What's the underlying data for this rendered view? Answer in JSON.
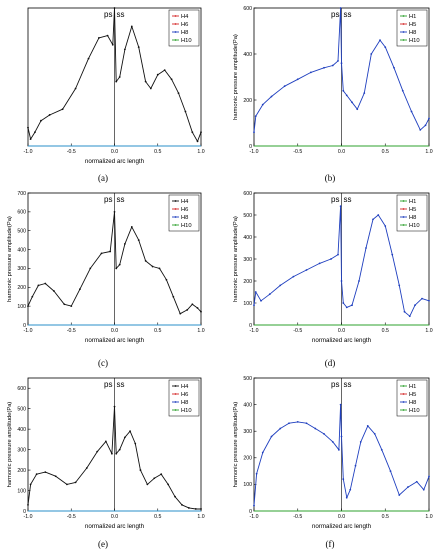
{
  "chart_data": [
    {
      "id": "a",
      "caption": "(a)",
      "type": "line",
      "xlabel": "normalized arc length",
      "ylabel": "",
      "xlim": [
        -1.0,
        1.0
      ],
      "ylim": [
        0,
        600
      ],
      "xticks": [
        -1.0,
        -0.5,
        0.0,
        0.5,
        1.0
      ],
      "xtick_labels": [
        "-1.0",
        "-0.5",
        "0.0",
        "0.5",
        "1.0"
      ],
      "yticks": [],
      "ytick_labels": [],
      "annotations": [
        "ps",
        "ss"
      ],
      "legend": [
        "H4",
        "H6",
        "H8",
        "H10"
      ],
      "legend_colors": [
        "#d62728",
        "#d62728",
        "#1f3fbf",
        "#2ca02c"
      ],
      "legend_position": "top-right",
      "series": [
        {
          "name": "H4",
          "color": "#111111",
          "x": [
            -1.0,
            -0.97,
            -0.92,
            -0.85,
            -0.75,
            -0.6,
            -0.45,
            -0.3,
            -0.18,
            -0.08,
            -0.02,
            0.0,
            0.02,
            0.06,
            0.12,
            0.2,
            0.28,
            0.36,
            0.42,
            0.5,
            0.58,
            0.66,
            0.74,
            0.82,
            0.9,
            0.96,
            1.0
          ],
          "y": [
            80,
            30,
            60,
            110,
            135,
            160,
            250,
            380,
            470,
            480,
            440,
            600,
            280,
            300,
            420,
            520,
            430,
            280,
            250,
            310,
            330,
            290,
            230,
            150,
            60,
            20,
            60
          ]
        },
        {
          "name": "H10",
          "color": "#2a8fc8",
          "x": [
            -1.0,
            1.0
          ],
          "y": [
            0,
            0
          ]
        }
      ]
    },
    {
      "id": "b",
      "caption": "(b)",
      "type": "line",
      "xlabel": "",
      "ylabel": "harmonic pressure amplitude(Pa)",
      "xlim": [
        -1.0,
        1.0
      ],
      "ylim": [
        0,
        600
      ],
      "xticks": [
        -1.0,
        -0.5,
        0.0,
        0.5,
        1.0
      ],
      "xtick_labels": [
        "-1.0",
        "-0.5",
        "0.0",
        "0.5",
        "1.0"
      ],
      "yticks": [
        0,
        200,
        400,
        600
      ],
      "ytick_labels": [
        "0",
        "200",
        "400",
        "600"
      ],
      "annotations": [
        "ps",
        "ss"
      ],
      "legend": [
        "H1",
        "H5",
        "H8",
        "H10"
      ],
      "legend_colors": [
        "#2ca02c",
        "#d62728",
        "#1f3fbf",
        "#2ca02c"
      ],
      "legend_position": "top-right",
      "series": [
        {
          "name": "H8",
          "color": "#1f3fbf",
          "x": [
            -1.0,
            -0.98,
            -0.9,
            -0.8,
            -0.65,
            -0.5,
            -0.35,
            -0.2,
            -0.1,
            -0.04,
            -0.01,
            0.0,
            0.02,
            0.06,
            0.12,
            0.18,
            0.26,
            0.34,
            0.44,
            0.5,
            0.6,
            0.7,
            0.8,
            0.9,
            0.96,
            1.0
          ],
          "y": [
            60,
            130,
            180,
            215,
            260,
            290,
            320,
            340,
            350,
            370,
            600,
            360,
            240,
            220,
            190,
            160,
            230,
            400,
            460,
            430,
            340,
            240,
            150,
            70,
            90,
            120
          ]
        },
        {
          "name": "H10",
          "color": "#2ca02c",
          "x": [
            -1.0,
            1.0
          ],
          "y": [
            0,
            0
          ]
        }
      ]
    },
    {
      "id": "c",
      "caption": "(c)",
      "type": "line",
      "xlabel": "normalized arc length",
      "ylabel": "harmonic pressure amplitude(Pa)",
      "xlim": [
        -1.0,
        1.0
      ],
      "ylim": [
        0,
        700
      ],
      "xticks": [
        -1.0,
        -0.5,
        0.0,
        0.5,
        1.0
      ],
      "xtick_labels": [
        "-1.0",
        "-0.5",
        "0.0",
        "0.5",
        "1.0"
      ],
      "yticks": [
        0,
        100,
        200,
        300,
        400,
        500,
        600,
        700
      ],
      "ytick_labels": [
        "0",
        "100",
        "200",
        "300",
        "400",
        "500",
        "600",
        "700"
      ],
      "annotations": [
        "ps",
        "ss"
      ],
      "legend": [
        "H4",
        "H6",
        "H8",
        "H10"
      ],
      "legend_colors": [
        "#111111",
        "#d62728",
        "#1f3fbf",
        "#2ca02c"
      ],
      "legend_position": "top-right",
      "series": [
        {
          "name": "H4",
          "color": "#111111",
          "x": [
            -1.0,
            -0.95,
            -0.88,
            -0.8,
            -0.7,
            -0.58,
            -0.5,
            -0.4,
            -0.28,
            -0.15,
            -0.05,
            0.0,
            0.02,
            0.06,
            0.12,
            0.2,
            0.28,
            0.36,
            0.44,
            0.52,
            0.6,
            0.68,
            0.76,
            0.84,
            0.9,
            0.96,
            1.0
          ],
          "y": [
            100,
            150,
            210,
            220,
            180,
            110,
            100,
            190,
            300,
            380,
            390,
            600,
            300,
            320,
            430,
            520,
            450,
            340,
            310,
            300,
            240,
            150,
            60,
            80,
            110,
            90,
            70
          ]
        },
        {
          "name": "H10",
          "color": "#2a8fc8",
          "x": [
            -1.0,
            1.0
          ],
          "y": [
            0,
            0
          ]
        }
      ]
    },
    {
      "id": "d",
      "caption": "(d)",
      "type": "line",
      "xlabel": "normalized arc length",
      "ylabel": "harmonic pressure amplitude(Pa)",
      "xlim": [
        -1.0,
        1.0
      ],
      "ylim": [
        0,
        600
      ],
      "xticks": [
        -1.0,
        -0.5,
        0.0,
        0.5,
        1.0
      ],
      "xtick_labels": [
        "-1.0",
        "-0.5",
        "0.0",
        "0.5",
        "1.0"
      ],
      "yticks": [
        0,
        100,
        200,
        300,
        400,
        500,
        600
      ],
      "ytick_labels": [
        "0",
        "100",
        "200",
        "300",
        "400",
        "500",
        "600"
      ],
      "annotations": [
        "ps",
        "ss"
      ],
      "legend": [
        "H1",
        "H5",
        "H8",
        "H10"
      ],
      "legend_colors": [
        "#2ca02c",
        "#d62728",
        "#1f3fbf",
        "#2ca02c"
      ],
      "legend_position": "top-right",
      "series": [
        {
          "name": "H8",
          "color": "#1f3fbf",
          "x": [
            -1.0,
            -0.98,
            -0.92,
            -0.82,
            -0.7,
            -0.55,
            -0.4,
            -0.25,
            -0.12,
            -0.04,
            -0.01,
            0.0,
            0.02,
            0.06,
            0.12,
            0.2,
            0.28,
            0.36,
            0.42,
            0.5,
            0.58,
            0.66,
            0.72,
            0.78,
            0.84,
            0.92,
            1.0
          ],
          "y": [
            90,
            150,
            110,
            140,
            180,
            220,
            250,
            280,
            300,
            320,
            540,
            200,
            100,
            80,
            90,
            200,
            350,
            480,
            500,
            450,
            320,
            180,
            60,
            40,
            90,
            120,
            110
          ]
        },
        {
          "name": "H10",
          "color": "#2ca02c",
          "x": [
            -1.0,
            1.0
          ],
          "y": [
            0,
            0
          ]
        }
      ]
    },
    {
      "id": "e",
      "caption": "(e)",
      "type": "line",
      "xlabel": "normalized arc length",
      "ylabel": "harmonic pressure amplitude(Pa)",
      "xlim": [
        -1.0,
        1.0
      ],
      "ylim": [
        0,
        650
      ],
      "xticks": [
        -1.0,
        -0.5,
        0.0,
        0.5,
        1.0
      ],
      "xtick_labels": [
        "-1.0",
        "-0.5",
        "0.0",
        "0.5",
        "1.0"
      ],
      "yticks": [
        0,
        100,
        200,
        300,
        400,
        500,
        600
      ],
      "ytick_labels": [
        "0",
        "100",
        "200",
        "300",
        "400",
        "500",
        "600"
      ],
      "annotations": [
        "ps",
        "ss"
      ],
      "legend": [
        "H4",
        "H6",
        "H8",
        "H10"
      ],
      "legend_colors": [
        "#111111",
        "#d62728",
        "#1f3fbf",
        "#2ca02c"
      ],
      "legend_position": "top-right",
      "series": [
        {
          "name": "H4",
          "color": "#111111",
          "x": [
            -1.0,
            -0.97,
            -0.9,
            -0.8,
            -0.68,
            -0.55,
            -0.45,
            -0.32,
            -0.2,
            -0.1,
            -0.03,
            0.0,
            0.02,
            0.06,
            0.12,
            0.18,
            0.24,
            0.3,
            0.38,
            0.46,
            0.54,
            0.62,
            0.7,
            0.78,
            0.86,
            0.94,
            1.0
          ],
          "y": [
            30,
            130,
            180,
            190,
            170,
            130,
            140,
            210,
            290,
            340,
            280,
            510,
            280,
            300,
            360,
            390,
            330,
            200,
            130,
            160,
            180,
            130,
            70,
            30,
            15,
            10,
            10
          ]
        },
        {
          "name": "H10",
          "color": "#2a8fc8",
          "x": [
            -1.0,
            1.0
          ],
          "y": [
            0,
            0
          ]
        }
      ]
    },
    {
      "id": "f",
      "caption": "(f)",
      "type": "line",
      "xlabel": "normalized arc length",
      "ylabel": "harmonic pressure amplitude(Pa)",
      "xlim": [
        -1.0,
        1.0
      ],
      "ylim": [
        0,
        500
      ],
      "xticks": [
        -1.0,
        -0.5,
        0.0,
        0.5,
        1.0
      ],
      "xtick_labels": [
        "-1.0",
        "-0.5",
        "0.0",
        "0.5",
        "1.0"
      ],
      "yticks": [
        0,
        100,
        200,
        300,
        400,
        500
      ],
      "ytick_labels": [
        "0",
        "100",
        "200",
        "300",
        "400",
        "500"
      ],
      "annotations": [
        "ps",
        "ss"
      ],
      "legend": [
        "H1",
        "H5",
        "H8",
        "H10"
      ],
      "legend_colors": [
        "#2ca02c",
        "#d62728",
        "#1f3fbf",
        "#2ca02c"
      ],
      "legend_position": "top-right",
      "series": [
        {
          "name": "H8",
          "color": "#1f3fbf",
          "x": [
            -1.0,
            -0.97,
            -0.9,
            -0.8,
            -0.7,
            -0.6,
            -0.5,
            -0.4,
            -0.3,
            -0.2,
            -0.1,
            -0.03,
            -0.01,
            0.0,
            0.02,
            0.06,
            0.1,
            0.16,
            0.22,
            0.3,
            0.38,
            0.46,
            0.56,
            0.66,
            0.76,
            0.86,
            0.94,
            1.0
          ],
          "y": [
            20,
            140,
            220,
            280,
            310,
            330,
            335,
            330,
            310,
            290,
            260,
            230,
            400,
            280,
            120,
            50,
            80,
            170,
            260,
            320,
            290,
            230,
            150,
            60,
            90,
            110,
            80,
            130
          ]
        },
        {
          "name": "H10",
          "color": "#2ca02c",
          "x": [
            -1.0,
            1.0
          ],
          "y": [
            0,
            0
          ]
        }
      ]
    }
  ]
}
